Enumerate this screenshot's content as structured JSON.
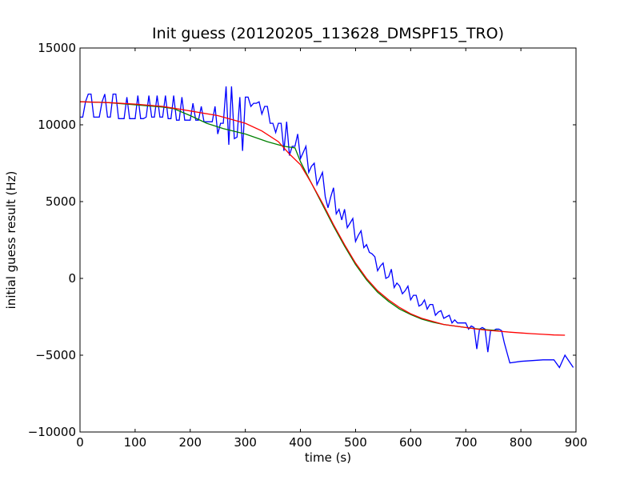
{
  "chart_data": {
    "type": "line",
    "title": "Init guess (20120205_113628_DMSPF15_TRO)",
    "xlabel": "time (s)",
    "ylabel": "initial guess result (Hz)",
    "xlim": [
      0,
      900
    ],
    "ylim": [
      -10000,
      15000
    ],
    "xticks": [
      0,
      100,
      200,
      300,
      400,
      500,
      600,
      700,
      800,
      900
    ],
    "yticks": [
      -10000,
      -5000,
      0,
      5000,
      10000,
      15000
    ],
    "xtick_labels": [
      "0",
      "100",
      "200",
      "300",
      "400",
      "500",
      "600",
      "700",
      "800",
      "900"
    ],
    "ytick_labels": [
      "−10000",
      "−5000",
      "0",
      "5000",
      "10000",
      "15000"
    ],
    "grid": false,
    "legend": "none",
    "series": [
      {
        "color": "#0000ff",
        "x": [
          0,
          5,
          10,
          15,
          20,
          25,
          30,
          35,
          40,
          45,
          50,
          55,
          60,
          65,
          70,
          75,
          80,
          85,
          90,
          95,
          100,
          105,
          110,
          115,
          120,
          125,
          130,
          135,
          140,
          145,
          150,
          155,
          160,
          165,
          170,
          175,
          180,
          185,
          190,
          195,
          200,
          205,
          210,
          215,
          220,
          225,
          230,
          235,
          240,
          245,
          250,
          255,
          260,
          265,
          270,
          275,
          280,
          285,
          290,
          295,
          300,
          305,
          310,
          315,
          320,
          325,
          330,
          335,
          340,
          345,
          350,
          355,
          360,
          365,
          370,
          375,
          380,
          385,
          390,
          395,
          400,
          405,
          410,
          415,
          420,
          425,
          430,
          435,
          440,
          445,
          450,
          455,
          460,
          465,
          470,
          475,
          480,
          485,
          490,
          495,
          500,
          505,
          510,
          515,
          520,
          525,
          530,
          535,
          540,
          545,
          550,
          555,
          560,
          565,
          570,
          575,
          580,
          585,
          590,
          595,
          600,
          605,
          610,
          615,
          620,
          625,
          630,
          635,
          640,
          645,
          650,
          655,
          660,
          665,
          670,
          675,
          680,
          685,
          690,
          695,
          700,
          705,
          710,
          715,
          720,
          725,
          730,
          735,
          740,
          745,
          750,
          755,
          760,
          765,
          770,
          780,
          800,
          840,
          860,
          870,
          880,
          895
        ],
        "y": [
          10500,
          10500,
          11500,
          12000,
          12000,
          10500,
          10500,
          10500,
          11500,
          12000,
          10500,
          10500,
          12000,
          12000,
          10400,
          10400,
          10400,
          11800,
          10400,
          10400,
          10400,
          11900,
          10400,
          10400,
          10500,
          11900,
          10500,
          10500,
          11900,
          10500,
          10500,
          11900,
          10400,
          10400,
          11900,
          10300,
          10300,
          11800,
          10300,
          10300,
          10300,
          11400,
          10300,
          10300,
          11200,
          10200,
          10200,
          10200,
          10200,
          11200,
          9400,
          10100,
          10100,
          12500,
          8700,
          12500,
          9100,
          9200,
          11800,
          8300,
          11800,
          11800,
          11200,
          11400,
          11400,
          11500,
          10700,
          11200,
          11200,
          10100,
          10100,
          9500,
          10100,
          10100,
          8300,
          10200,
          8000,
          8600,
          8600,
          9400,
          7800,
          8200,
          8600,
          6900,
          7300,
          7500,
          6100,
          6500,
          6900,
          5300,
          4600,
          5300,
          5900,
          4200,
          4500,
          3800,
          4500,
          3300,
          3600,
          3900,
          2400,
          2800,
          3100,
          2000,
          2200,
          1700,
          1600,
          1400,
          500,
          800,
          1000,
          0,
          100,
          600,
          -600,
          -300,
          -500,
          -1000,
          -800,
          -500,
          -1400,
          -1100,
          -1100,
          -1800,
          -1700,
          -1400,
          -2000,
          -1700,
          -1700,
          -2400,
          -2200,
          -2100,
          -2600,
          -2500,
          -2400,
          -2900,
          -2700,
          -2900,
          -2900,
          -2900,
          -2900,
          -3300,
          -3100,
          -3200,
          -4600,
          -3300,
          -3200,
          -3300,
          -4800,
          -3400,
          -3400,
          -3300,
          -3300,
          -3400,
          -4200,
          -5500,
          -5400,
          -5300,
          -5300,
          -5800,
          -5000,
          -5800
        ]
      },
      {
        "color": "#008000",
        "x": [
          0,
          50,
          100,
          150,
          170,
          200,
          230,
          260,
          300,
          340,
          370,
          390,
          400,
          420,
          440,
          460,
          480,
          500,
          520,
          540,
          560,
          580,
          600,
          620,
          640,
          660,
          680,
          700,
          720,
          740,
          760
        ],
        "y": [
          11500,
          11450,
          11300,
          11150,
          11050,
          10600,
          10100,
          9750,
          9400,
          8900,
          8600,
          8500,
          7600,
          6200,
          4800,
          3400,
          2100,
          900,
          -100,
          -900,
          -1500,
          -2000,
          -2350,
          -2650,
          -2850,
          -3000,
          -3100,
          -3200,
          -3280,
          -3350,
          -3400
        ]
      },
      {
        "color": "#ff0000",
        "x": [
          0,
          50,
          100,
          150,
          200,
          250,
          300,
          330,
          360,
          380,
          400,
          420,
          440,
          460,
          480,
          500,
          520,
          540,
          560,
          580,
          600,
          620,
          640,
          660,
          680,
          700,
          720,
          740,
          760,
          780,
          800,
          820,
          840,
          860,
          880
        ],
        "y": [
          11500,
          11450,
          11350,
          11200,
          10900,
          10600,
          10100,
          9600,
          8900,
          8100,
          7400,
          6200,
          4900,
          3500,
          2200,
          1000,
          0,
          -800,
          -1400,
          -1900,
          -2300,
          -2600,
          -2800,
          -3000,
          -3100,
          -3200,
          -3300,
          -3380,
          -3440,
          -3500,
          -3550,
          -3600,
          -3640,
          -3680,
          -3700
        ]
      }
    ]
  }
}
